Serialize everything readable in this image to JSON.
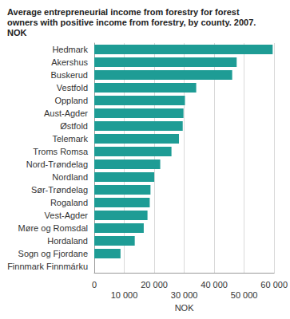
{
  "chart_data": {
    "type": "bar",
    "orientation": "horizontal",
    "title": "Average entrepreneurial income from forestry for forest\nowners with positive income from forestry, by county. 2007.\nNOK",
    "x_label": "NOK",
    "categories": [
      "Hedmark",
      "Akershus",
      "Buskerud",
      "Vestfold",
      "Oppland",
      "Aust-Agder",
      "Østfold",
      "Telemark",
      "Troms Romsa",
      "Nord-Trøndelag",
      "Nordland",
      "Sør-Trøndelag",
      "Rogaland",
      "Vest-Agder",
      "Møre og Romsdal",
      "Hordaland",
      "Sogn og Fjordane",
      "Finnmark Finnmárku"
    ],
    "values": [
      59500,
      47500,
      46000,
      34000,
      30250,
      29750,
      29500,
      28250,
      25750,
      22000,
      20000,
      18750,
      18500,
      17750,
      16500,
      13500,
      8750,
      null
    ],
    "color": "#1e9c95",
    "xlim": [
      0,
      60000
    ],
    "xticks": [
      0,
      {
        "value": 10000,
        "label": "10 000"
      },
      {
        "value": 20000,
        "label": "20 000"
      },
      {
        "value": 30000,
        "label": "30 000"
      },
      {
        "value": 40000,
        "label": "40 000"
      },
      {
        "value": 50000,
        "label": "50 000"
      },
      {
        "value": 60000,
        "label": "60 000"
      }
    ],
    "grid": true
  }
}
